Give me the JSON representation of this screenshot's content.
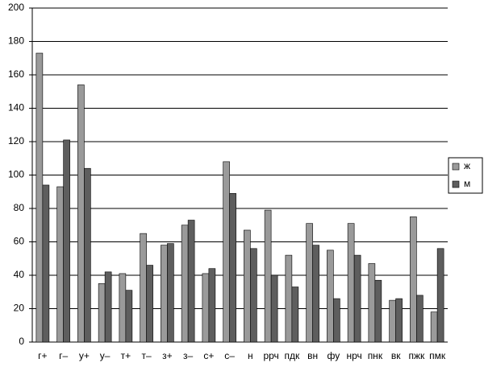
{
  "chart_data": {
    "type": "bar",
    "categories": [
      "г+",
      "г–",
      "у+",
      "у–",
      "т+",
      "т–",
      "з+",
      "з–",
      "с+",
      "с–",
      "н",
      "ррч",
      "пдк",
      "вн",
      "фу",
      "нрч",
      "пнк",
      "вк",
      "пжк",
      "пмк"
    ],
    "series": [
      {
        "name": "ж",
        "color": "#9a9a9a",
        "values": [
          173,
          93,
          154,
          35,
          41,
          65,
          58,
          70,
          41,
          108,
          67,
          79,
          52,
          71,
          55,
          71,
          47,
          25,
          75,
          18
        ]
      },
      {
        "name": "м",
        "color": "#5e5e5e",
        "values": [
          94,
          121,
          104,
          42,
          31,
          46,
          59,
          73,
          44,
          89,
          56,
          40,
          33,
          58,
          26,
          52,
          37,
          26,
          28,
          56
        ]
      }
    ],
    "ylim": [
      0,
      200
    ],
    "yticks": [
      0,
      20,
      40,
      60,
      80,
      100,
      120,
      140,
      160,
      180,
      200
    ],
    "grid": true,
    "legend": "right"
  }
}
